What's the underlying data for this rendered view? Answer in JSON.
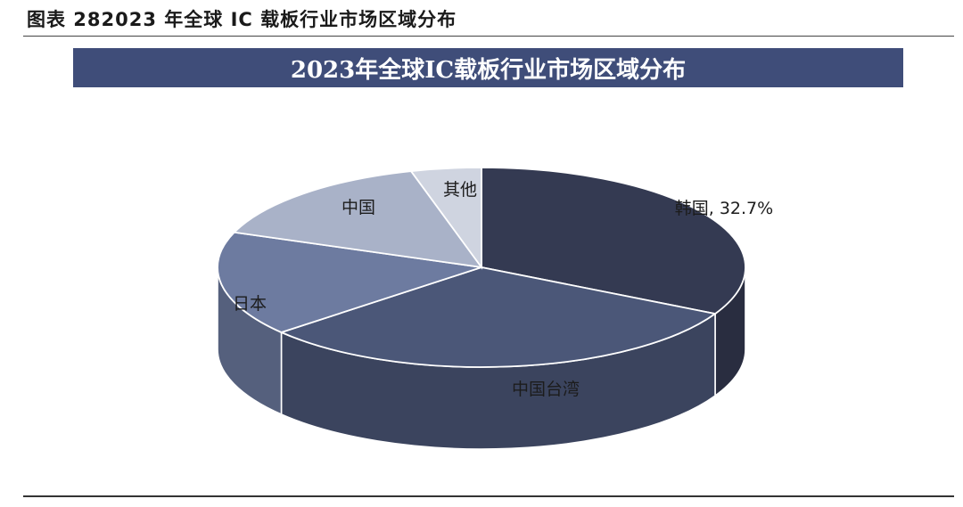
{
  "caption": "图表 282023 年全球 IC 载板行业市场区域分布",
  "chart_data": {
    "type": "pie",
    "title": "2023年全球IC载板行业市场区域分布",
    "slices": [
      {
        "label": "韩国",
        "value": 32.7,
        "value_label": "32.7%",
        "color": "#343a52"
      },
      {
        "label": "中国台湾",
        "value": 31.0,
        "color": "#4b5778"
      },
      {
        "label": "日本",
        "value": 17.0,
        "color": "#6d7ba0"
      },
      {
        "label": "中国",
        "value": 15.0,
        "color": "#a9b2c8"
      },
      {
        "label": "其他",
        "value": 4.3,
        "color": "#cfd4e0"
      }
    ]
  }
}
